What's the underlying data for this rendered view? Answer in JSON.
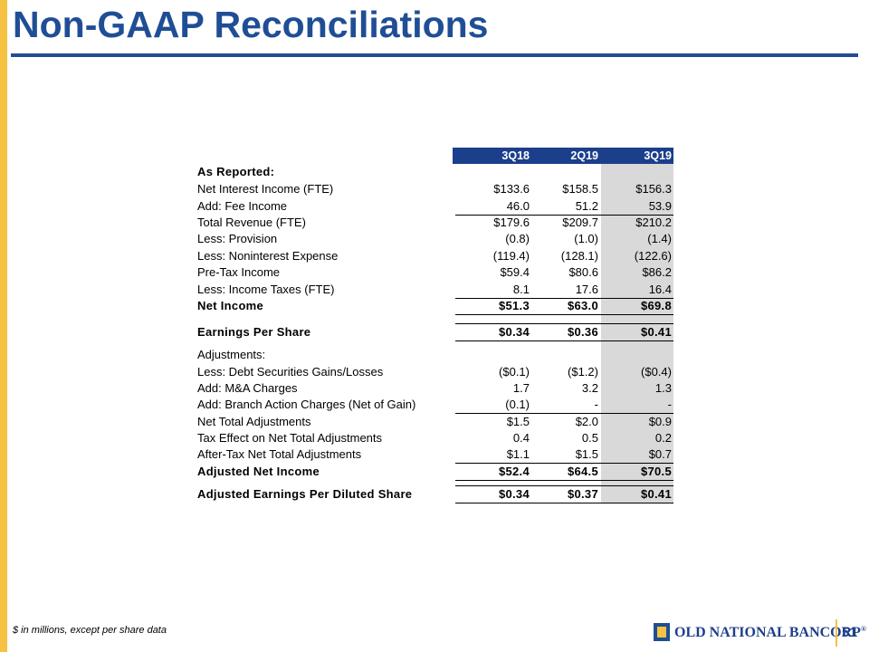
{
  "header": {
    "title": "Non-GAAP Reconciliations"
  },
  "table": {
    "columns": [
      "3Q18",
      "2Q19",
      "3Q19"
    ],
    "rows": [
      [
        "As Reported:"
      ],
      [
        "Net Interest Income (FTE)",
        "$133.6",
        "$158.5",
        "$156.3"
      ],
      [
        "Add: Fee Income",
        "46.0",
        "51.2",
        "53.9"
      ],
      [
        "Total Revenue (FTE)",
        "$179.6",
        "$209.7",
        "$210.2"
      ],
      [
        "Less: Provision",
        "(0.8)",
        "(1.0)",
        "(1.4)"
      ],
      [
        "Less: Noninterest Expense",
        "(119.4)",
        "(128.1)",
        "(122.6)"
      ],
      [
        "Pre-Tax Income",
        "$59.4",
        "$80.6",
        "$86.2"
      ],
      [
        "Less: Income Taxes (FTE)",
        "8.1",
        "17.6",
        "16.4"
      ],
      [
        "Net Income",
        "$51.3",
        "$63.0",
        "$69.8"
      ],
      [
        "Earnings Per Share",
        "$0.34",
        "$0.36",
        "$0.41"
      ],
      [
        "Adjustments:"
      ],
      [
        "Less: Debt Securities Gains/Losses",
        "($0.1)",
        "($1.2)",
        "($0.4)"
      ],
      [
        "Add: M&A Charges",
        "1.7",
        "3.2",
        "1.3"
      ],
      [
        "Add: Branch Action Charges (Net of Gain)",
        "(0.1)",
        "-",
        "-"
      ],
      [
        "Net Total Adjustments",
        "$1.5",
        "$2.0",
        "$0.9"
      ],
      [
        "Tax Effect on Net Total Adjustments",
        "0.4",
        "0.5",
        "0.2"
      ],
      [
        "After-Tax Net Total Adjustments",
        "$1.1",
        "$1.5",
        "$0.7"
      ],
      [
        "Adjusted Net Income",
        "$52.4",
        "$64.5",
        "$70.5"
      ],
      [
        "Adjusted Earnings Per Diluted Share",
        "$0.34",
        "$0.37",
        "$0.41"
      ]
    ]
  },
  "footer": {
    "note": "$ in millions, except per share data",
    "logo": "OLD NATIONAL BANCORP",
    "registered": "®",
    "page_number": "51"
  }
}
